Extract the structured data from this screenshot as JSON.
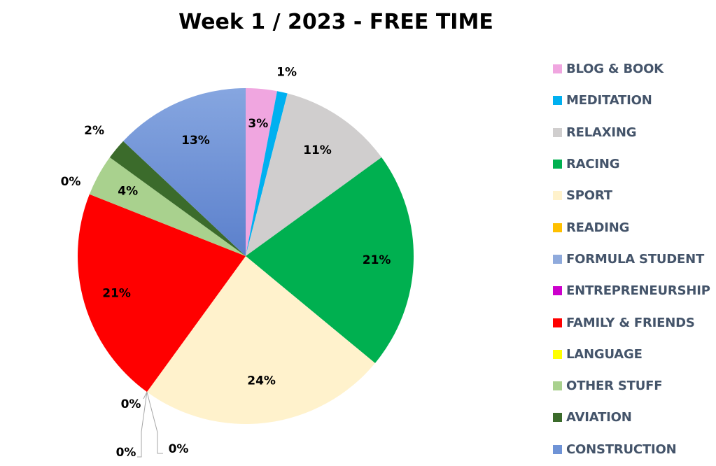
{
  "chart_data": {
    "type": "pie",
    "title": "Week 1 / 2023 - FREE TIME",
    "legend_position": "right",
    "start_angle_deg": 0,
    "direction": "clockwise",
    "slices": [
      {
        "name": "BLOG & BOOK",
        "value": 3,
        "label": "3%",
        "color": "#f0a6e0"
      },
      {
        "name": "MEDITATION",
        "value": 1,
        "label": "1%",
        "color": "#00b0f0"
      },
      {
        "name": "RELAXING",
        "value": 11,
        "label": "11%",
        "color": "#d0cece"
      },
      {
        "name": "RACING",
        "value": 21,
        "label": "21%",
        "color": "#00b050"
      },
      {
        "name": "SPORT",
        "value": 24,
        "label": "24%",
        "color": "#fff2cc"
      },
      {
        "name": "READING",
        "value": 0,
        "label": "0%",
        "color": "#ffc000"
      },
      {
        "name": "FORMULA STUDENT",
        "value": 0,
        "label": "0%",
        "color": "#8faadc"
      },
      {
        "name": "ENTREPRENEURSHIP",
        "value": 0,
        "label": "0%",
        "color": "#cc00cc"
      },
      {
        "name": "FAMILY & FRIENDS",
        "value": 21,
        "label": "21%",
        "color": "#ff0000"
      },
      {
        "name": "LANGUAGE",
        "value": 0,
        "label": "0%",
        "color": "#ffff00"
      },
      {
        "name": "OTHER STUFF",
        "value": 4,
        "label": "4%",
        "color": "#a9d18e"
      },
      {
        "name": "AVIATION",
        "value": 2,
        "label": "2%",
        "color": "#3b6b2b"
      },
      {
        "name": "CONSTRUCTION",
        "value": 13,
        "label": "13%",
        "color": "#6f93d6"
      }
    ]
  }
}
